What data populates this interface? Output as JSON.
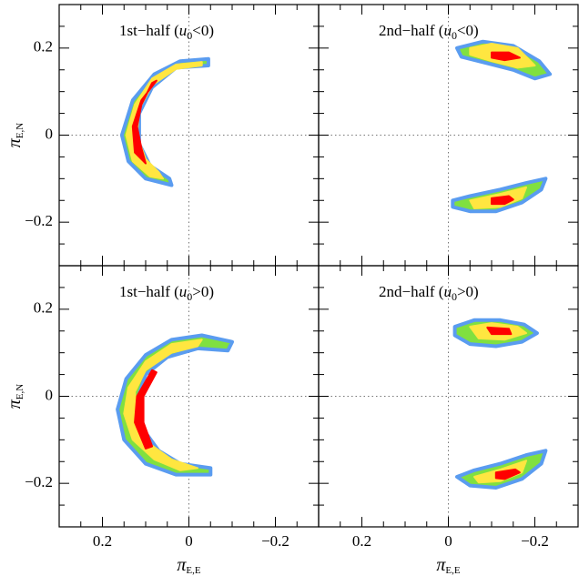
{
  "axes": {
    "xlim": [
      0.3,
      -0.3
    ],
    "ylim": [
      -0.3,
      0.3
    ],
    "xticks": [
      0.2,
      0,
      {
        "value": -0.2,
        "label": "−0.2"
      }
    ],
    "yticks": [
      0.2,
      0,
      {
        "value": -0.2,
        "label": "−0.2"
      }
    ],
    "xminorticks": [
      0.25,
      0.15,
      0.1,
      0.05,
      -0.05,
      -0.1,
      -0.15,
      -0.25
    ],
    "yminorticks": [
      0.25,
      0.15,
      0.1,
      0.05,
      -0.05,
      -0.1,
      -0.15,
      -0.25
    ],
    "xlabel": [
      "π",
      "E,E"
    ],
    "ylabel": [
      "π",
      "E,N"
    ],
    "zero_lines": true
  },
  "chart_data": [
    {
      "type": "density",
      "title": [
        "1st−half (",
        "u",
        "0",
        "<0)"
      ],
      "series": [
        {
          "color": "#80e040",
          "x": [
            -0.045,
            0.02,
            0.08,
            0.13,
            0.155,
            0.14,
            0.1,
            0.04,
            0.045,
            0.09,
            0.115,
            0.115,
            0.085,
            0.03,
            -0.045
          ],
          "y": [
            0.175,
            0.17,
            0.14,
            0.08,
            0.0,
            -0.06,
            -0.1,
            -0.115,
            -0.1,
            -0.07,
            -0.02,
            0.05,
            0.11,
            0.155,
            0.16
          ]
        },
        {
          "color": "#ffe640",
          "x": [
            -0.03,
            0.03,
            0.085,
            0.125,
            0.145,
            0.13,
            0.09,
            0.06,
            0.07,
            0.1,
            0.12,
            0.115,
            0.085,
            0.03,
            -0.03
          ],
          "y": [
            0.168,
            0.162,
            0.13,
            0.07,
            0.0,
            -0.06,
            -0.095,
            -0.1,
            -0.085,
            -0.055,
            0.0,
            0.06,
            0.115,
            0.152,
            0.16
          ]
        },
        {
          "color": "#ff0000",
          "x": [
            0.075,
            0.11,
            0.13,
            0.125,
            0.1,
            0.11,
            0.12,
            0.11,
            0.085
          ],
          "y": [
            0.125,
            0.08,
            0.02,
            -0.04,
            -0.065,
            -0.03,
            0.02,
            0.07,
            0.12
          ]
        }
      ]
    },
    {
      "type": "density",
      "title": [
        "2nd−half (",
        "u",
        "0",
        "<0)"
      ],
      "series": [
        {
          "color": "#80e040",
          "x": [
            -0.02,
            -0.08,
            -0.15,
            -0.21,
            -0.235,
            -0.2,
            -0.15,
            -0.09,
            -0.03
          ],
          "y": [
            0.2,
            0.215,
            0.205,
            0.17,
            0.14,
            0.13,
            0.15,
            0.165,
            0.18
          ]
        },
        {
          "color": "#ffe640",
          "x": [
            -0.05,
            -0.1,
            -0.16,
            -0.2,
            -0.16,
            -0.1,
            -0.05
          ],
          "y": [
            0.2,
            0.21,
            0.2,
            0.16,
            0.155,
            0.17,
            0.185
          ]
        },
        {
          "color": "#ff0000",
          "x": [
            -0.1,
            -0.14,
            -0.165,
            -0.13,
            -0.1
          ],
          "y": [
            0.19,
            0.19,
            0.178,
            0.172,
            0.178
          ]
        },
        {
          "color": "#80e040",
          "x": [
            -0.01,
            -0.05,
            -0.12,
            -0.18,
            -0.225,
            -0.215,
            -0.17,
            -0.11,
            -0.05,
            -0.01
          ],
          "y": [
            -0.15,
            -0.14,
            -0.125,
            -0.11,
            -0.1,
            -0.125,
            -0.155,
            -0.175,
            -0.175,
            -0.165
          ]
        },
        {
          "color": "#ffe640",
          "x": [
            -0.05,
            -0.12,
            -0.18,
            -0.17,
            -0.12,
            -0.06
          ],
          "y": [
            -0.15,
            -0.135,
            -0.12,
            -0.145,
            -0.165,
            -0.168
          ]
        },
        {
          "color": "#ff0000",
          "x": [
            -0.1,
            -0.14,
            -0.15,
            -0.13,
            -0.1
          ],
          "y": [
            -0.145,
            -0.14,
            -0.148,
            -0.158,
            -0.158
          ]
        }
      ]
    },
    {
      "type": "density",
      "title": [
        "1st−half (",
        "u",
        "0",
        ">0)"
      ],
      "series": [
        {
          "color": "#80e040",
          "x": [
            -0.1,
            -0.03,
            0.04,
            0.1,
            0.145,
            0.165,
            0.15,
            0.1,
            0.03,
            -0.05,
            -0.05,
            0.02,
            0.07,
            0.11,
            0.12,
            0.1,
            0.05,
            -0.02,
            -0.09
          ],
          "y": [
            0.125,
            0.14,
            0.13,
            0.095,
            0.04,
            -0.03,
            -0.1,
            -0.155,
            -0.18,
            -0.18,
            -0.165,
            -0.155,
            -0.125,
            -0.07,
            -0.01,
            0.05,
            0.09,
            0.11,
            0.105
          ]
        },
        {
          "color": "#ffe640",
          "x": [
            -0.03,
            0.04,
            0.1,
            0.14,
            0.15,
            0.13,
            0.08,
            0.02,
            -0.02,
            0.04,
            0.09,
            0.12,
            0.125,
            0.1,
            0.04,
            -0.02
          ],
          "y": [
            0.13,
            0.12,
            0.08,
            0.02,
            -0.04,
            -0.1,
            -0.145,
            -0.17,
            -0.165,
            -0.145,
            -0.11,
            -0.05,
            0.01,
            0.06,
            0.1,
            0.115
          ]
        },
        {
          "color": "#ff0000",
          "x": [
            0.085,
            0.12,
            0.125,
            0.1,
            0.085,
            0.105,
            0.105,
            0.075
          ],
          "y": [
            0.06,
            0.0,
            -0.06,
            -0.12,
            -0.115,
            -0.06,
            0.0,
            0.055
          ]
        }
      ]
    },
    {
      "type": "density",
      "title": [
        "2nd−half (",
        "u",
        "0",
        ">0)"
      ],
      "series": [
        {
          "color": "#80e040",
          "x": [
            -0.015,
            -0.06,
            -0.12,
            -0.175,
            -0.205,
            -0.17,
            -0.11,
            -0.05,
            -0.015
          ],
          "y": [
            0.16,
            0.175,
            0.175,
            0.165,
            0.145,
            0.125,
            0.115,
            0.12,
            0.14
          ]
        },
        {
          "color": "#ffe640",
          "x": [
            -0.05,
            -0.1,
            -0.16,
            -0.18,
            -0.13,
            -0.07
          ],
          "y": [
            0.16,
            0.168,
            0.16,
            0.145,
            0.13,
            0.133
          ]
        },
        {
          "color": "#ff0000",
          "x": [
            -0.09,
            -0.14,
            -0.145,
            -0.1
          ],
          "y": [
            0.158,
            0.155,
            0.143,
            0.143
          ]
        },
        {
          "color": "#80e040",
          "x": [
            -0.02,
            -0.06,
            -0.12,
            -0.18,
            -0.225,
            -0.215,
            -0.17,
            -0.11,
            -0.05
          ],
          "y": [
            -0.185,
            -0.17,
            -0.155,
            -0.135,
            -0.125,
            -0.155,
            -0.19,
            -0.21,
            -0.205
          ]
        },
        {
          "color": "#ffe640",
          "x": [
            -0.06,
            -0.12,
            -0.18,
            -0.17,
            -0.12,
            -0.07
          ],
          "y": [
            -0.185,
            -0.168,
            -0.148,
            -0.175,
            -0.195,
            -0.198
          ]
        },
        {
          "color": "#ff0000",
          "x": [
            -0.11,
            -0.155,
            -0.165,
            -0.13,
            -0.11
          ],
          "y": [
            -0.175,
            -0.168,
            -0.175,
            -0.19,
            -0.188
          ]
        }
      ]
    }
  ]
}
